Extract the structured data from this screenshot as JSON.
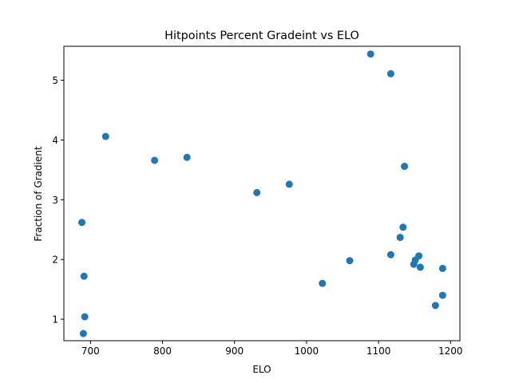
{
  "chart_data": {
    "type": "scatter",
    "title": "Hitpoints Percent Gradeint vs ELO",
    "xlabel": "ELO",
    "ylabel": "Fraction of Gradient",
    "xlim": [
      663,
      1213
    ],
    "ylim": [
      0.64,
      5.57
    ],
    "xticks": [
      700,
      800,
      900,
      1000,
      1100,
      1200
    ],
    "yticks": [
      1,
      2,
      3,
      4,
      5
    ],
    "grid": false,
    "marker_color": "#1f77b4",
    "points": [
      {
        "x": 688,
        "y": 2.62
      },
      {
        "x": 690,
        "y": 0.76
      },
      {
        "x": 691,
        "y": 1.72
      },
      {
        "x": 692,
        "y": 1.04
      },
      {
        "x": 721,
        "y": 4.06
      },
      {
        "x": 789,
        "y": 3.66
      },
      {
        "x": 834,
        "y": 3.71
      },
      {
        "x": 931,
        "y": 3.12
      },
      {
        "x": 976,
        "y": 3.26
      },
      {
        "x": 1022,
        "y": 1.6
      },
      {
        "x": 1060,
        "y": 1.98
      },
      {
        "x": 1089,
        "y": 5.44
      },
      {
        "x": 1117,
        "y": 5.11
      },
      {
        "x": 1117,
        "y": 2.08
      },
      {
        "x": 1130,
        "y": 2.37
      },
      {
        "x": 1134,
        "y": 2.54
      },
      {
        "x": 1136,
        "y": 3.56
      },
      {
        "x": 1149,
        "y": 1.92
      },
      {
        "x": 1151,
        "y": 1.99
      },
      {
        "x": 1156,
        "y": 2.06
      },
      {
        "x": 1158,
        "y": 1.87
      },
      {
        "x": 1179,
        "y": 1.23
      },
      {
        "x": 1189,
        "y": 1.85
      },
      {
        "x": 1189,
        "y": 1.4
      }
    ]
  }
}
